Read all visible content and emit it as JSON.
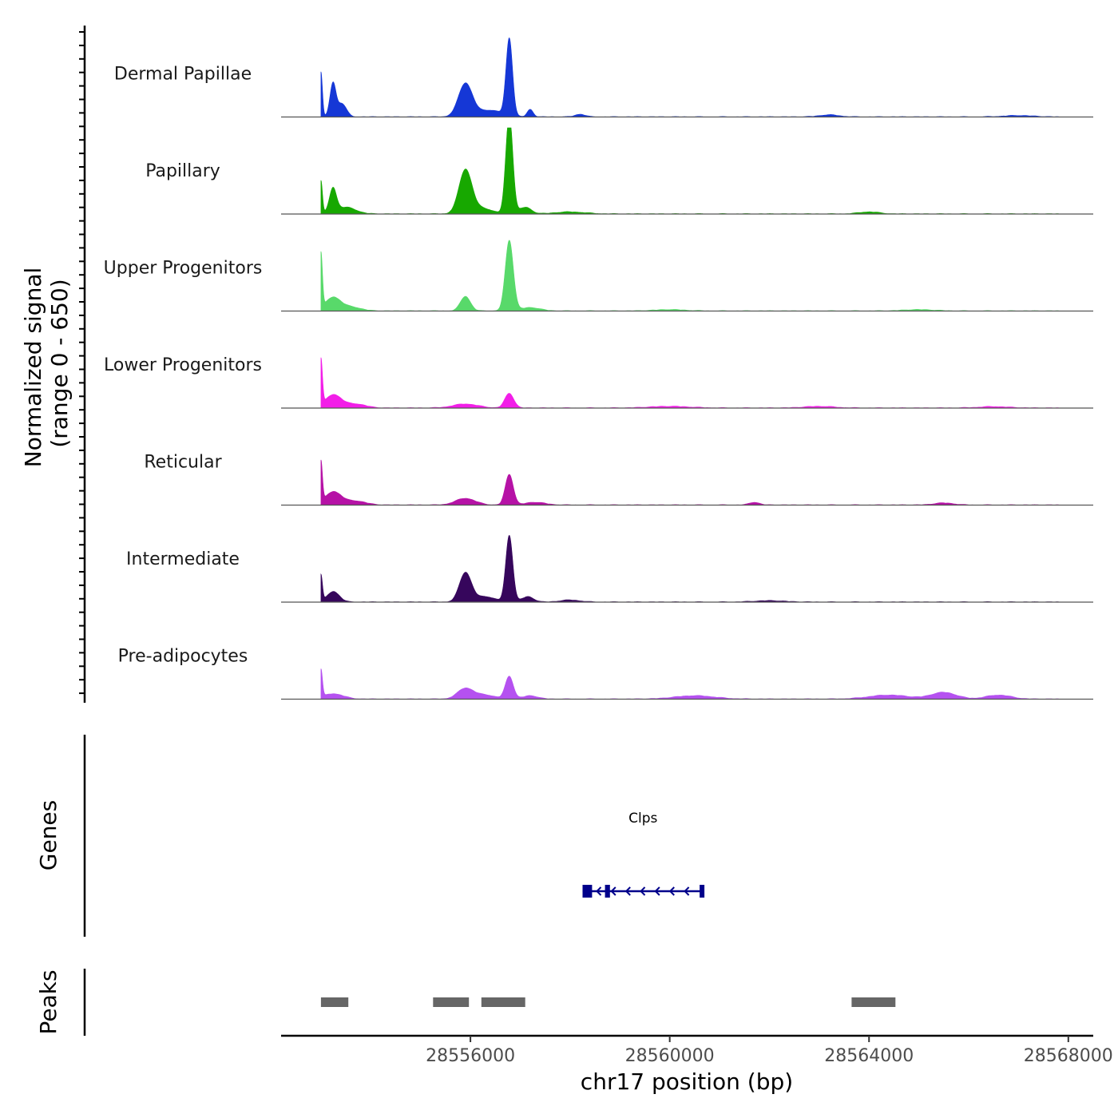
{
  "chart_data": {
    "type": "area",
    "title": "",
    "ylabel_line1": "Normalized signal",
    "ylabel_line2": "(range 0 - 650)",
    "ylim": [
      0,
      650
    ],
    "xlabel": "chr17 position (bp)",
    "xlim": [
      28552200,
      28568500
    ],
    "x_ticks": [
      28556000,
      28560000,
      28564000,
      28568000
    ],
    "x_tick_labels": [
      "28556000",
      "28560000",
      "28564000",
      "28568000"
    ],
    "tracks": [
      {
        "name": "Dermal Papillae",
        "color": "#1537d6",
        "peaks": [
          [
            28553000,
            340,
            30
          ],
          [
            28553240,
            250,
            60
          ],
          [
            28553420,
            100,
            90
          ],
          [
            28555900,
            250,
            140
          ],
          [
            28556780,
            580,
            65
          ],
          [
            28556400,
            50,
            250
          ],
          [
            28557200,
            55,
            60
          ],
          [
            28558200,
            20,
            100
          ],
          [
            28563200,
            15,
            200
          ],
          [
            28567000,
            10,
            300
          ]
        ]
      },
      {
        "name": "Papillary",
        "color": "#17a800",
        "peaks": [
          [
            28553000,
            250,
            30
          ],
          [
            28553240,
            180,
            70
          ],
          [
            28553500,
            50,
            200
          ],
          [
            28555900,
            330,
            130
          ],
          [
            28556780,
            750,
            70
          ],
          [
            28556250,
            40,
            200
          ],
          [
            28557100,
            50,
            120
          ],
          [
            28558000,
            15,
            300
          ],
          [
            28564000,
            15,
            200
          ]
        ]
      },
      {
        "name": "Upper Progenitors",
        "color": "#58d96a",
        "peaks": [
          [
            28553000,
            420,
            30
          ],
          [
            28553240,
            100,
            150
          ],
          [
            28553600,
            30,
            200
          ],
          [
            28555900,
            110,
            100
          ],
          [
            28556780,
            530,
            80
          ],
          [
            28557200,
            25,
            200
          ],
          [
            28560000,
            10,
            300
          ],
          [
            28565000,
            10,
            300
          ]
        ]
      },
      {
        "name": "Lower Progenitors",
        "color": "#f21ee8",
        "peaks": [
          [
            28553000,
            350,
            30
          ],
          [
            28553250,
            100,
            160
          ],
          [
            28553700,
            30,
            200
          ],
          [
            28556780,
            110,
            90
          ],
          [
            28555900,
            30,
            250
          ],
          [
            28560000,
            12,
            400
          ],
          [
            28563000,
            12,
            300
          ],
          [
            28566500,
            10,
            300
          ]
        ]
      },
      {
        "name": "Reticular",
        "color": "#b612a6",
        "peaks": [
          [
            28553000,
            310,
            30
          ],
          [
            28553250,
            100,
            160
          ],
          [
            28553700,
            30,
            200
          ],
          [
            28555900,
            50,
            200
          ],
          [
            28556780,
            230,
            80
          ],
          [
            28557300,
            20,
            200
          ],
          [
            28561700,
            20,
            100
          ],
          [
            28565500,
            15,
            200
          ]
        ]
      },
      {
        "name": "Intermediate",
        "color": "#36065c",
        "peaks": [
          [
            28553000,
            200,
            30
          ],
          [
            28553250,
            80,
            120
          ],
          [
            28555900,
            220,
            120
          ],
          [
            28556780,
            500,
            70
          ],
          [
            28556300,
            40,
            200
          ],
          [
            28557150,
            40,
            120
          ],
          [
            28558000,
            15,
            200
          ],
          [
            28562000,
            10,
            300
          ]
        ]
      },
      {
        "name": "Pre-adipocytes",
        "color": "#b551f0",
        "peaks": [
          [
            28553000,
            210,
            30
          ],
          [
            28553250,
            40,
            200
          ],
          [
            28555900,
            80,
            160
          ],
          [
            28556780,
            170,
            80
          ],
          [
            28556300,
            30,
            200
          ],
          [
            28557200,
            25,
            150
          ],
          [
            28560500,
            25,
            400
          ],
          [
            28564400,
            30,
            400
          ],
          [
            28565500,
            50,
            250
          ],
          [
            28566600,
            30,
            250
          ]
        ]
      }
    ],
    "genes": [
      {
        "name": "Clps",
        "color": "#00008b",
        "strand": "-",
        "start": 28558250,
        "end": 28560680,
        "exons": [
          [
            28558250,
            28558440
          ],
          [
            28558700,
            28558800
          ],
          [
            28560600,
            28560680
          ]
        ]
      }
    ],
    "peak_regions": {
      "color": "#666666",
      "regions": [
        [
          28553000,
          28553550
        ],
        [
          28555250,
          28555970
        ],
        [
          28556220,
          28557100
        ],
        [
          28563650,
          28564530
        ]
      ]
    },
    "track_axis_label_genes": "Genes",
    "track_axis_label_peaks": "Peaks"
  }
}
